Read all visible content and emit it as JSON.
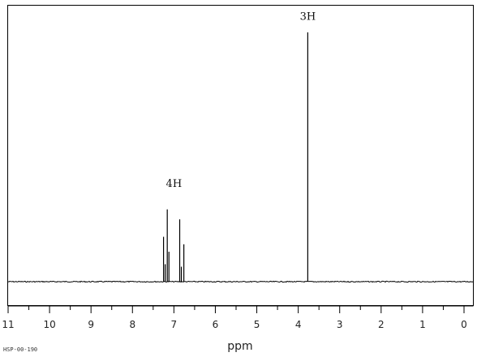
{
  "chart_data": {
    "type": "line",
    "title": "",
    "xlabel": "ppm",
    "ylabel": "",
    "x_reversed": true,
    "xlim": [
      11,
      0
    ],
    "x_ticks": [
      11,
      10,
      9,
      8,
      7,
      6,
      5,
      4,
      3,
      2,
      1,
      0
    ],
    "x_tick_labels": [
      "11",
      "10",
      "9",
      "8",
      "7",
      "6",
      "5",
      "4",
      "3",
      "2",
      "1",
      "0"
    ],
    "grid": false,
    "peaks": [
      {
        "ppm": 7.25,
        "intensity": 0.18
      },
      {
        "ppm": 7.21,
        "intensity": 0.07
      },
      {
        "ppm": 7.16,
        "intensity": 0.29
      },
      {
        "ppm": 7.12,
        "intensity": 0.12
      },
      {
        "ppm": 6.86,
        "intensity": 0.25
      },
      {
        "ppm": 6.82,
        "intensity": 0.06
      },
      {
        "ppm": 6.76,
        "intensity": 0.15
      },
      {
        "ppm": 3.77,
        "intensity": 1.0
      }
    ],
    "annotations": [
      {
        "text": "4H",
        "ppm": 7.0,
        "intensity": 0.38
      },
      {
        "text": "3H",
        "ppm": 3.77,
        "intensity": 1.05
      }
    ],
    "footer_id": "HSP-00-190"
  }
}
